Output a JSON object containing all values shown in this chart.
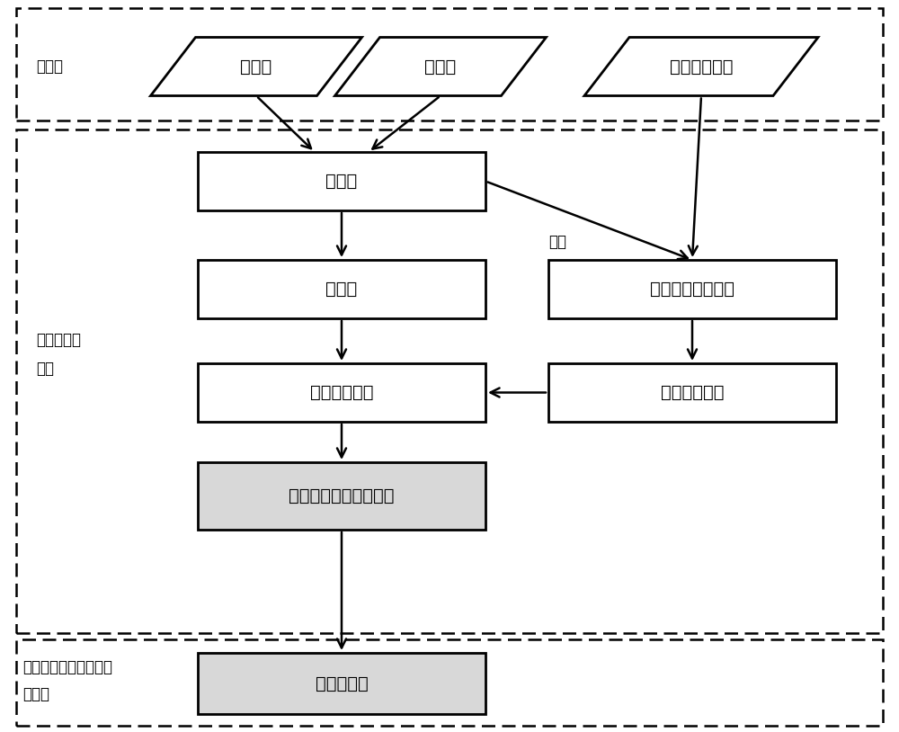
{
  "fig_width": 10.0,
  "fig_height": 8.14,
  "bg_color": "#ffffff",
  "box_edge_color": "#000000",
  "box_fill_white": "#ffffff",
  "box_fill_gray": "#d8d8d8",
  "text_color": "#000000",
  "font_size_main": 14,
  "font_size_label": 12,
  "parallelogram_labels": [
    "左影像",
    "右影像",
    "矢量房屋地图"
  ],
  "box_labels": {
    "overlap": "重叠区",
    "skeleton": "骨架线",
    "candidate_lib": "候选镶嵌线库",
    "min_cost": "成本最低的候选镶嵌线",
    "vector_in_overlap": "重叠区内矢量房屋",
    "midline": "房屋间中间线",
    "final": "最终镶嵌线"
  },
  "label_datasource": "数据源",
  "label_extract": "提取初始镶\n嵌线",
  "label_reextract": "使用影像内容重新提取\n镶嵌线",
  "annotation_caijian": "裁剪"
}
